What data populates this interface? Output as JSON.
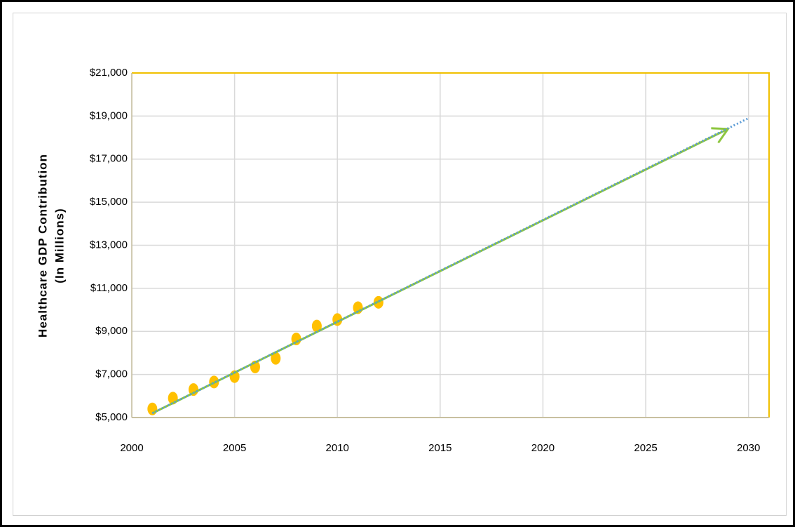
{
  "chart_data": {
    "type": "scatter",
    "ylabel": [
      "Healthcare GDP Contribution",
      "(In Millions)"
    ],
    "x": [
      2001,
      2002,
      2003,
      2004,
      2005,
      2006,
      2007,
      2008,
      2009,
      2010,
      2011,
      2012
    ],
    "values": [
      5400,
      5900,
      6300,
      6650,
      6900,
      7350,
      7750,
      8650,
      9250,
      9550,
      10100,
      10350
    ],
    "color": "#ffc000",
    "trendline": {
      "x": [
        2001,
        2030
      ],
      "values": [
        5200,
        18900
      ],
      "color": "#5b9bd5"
    },
    "arrow": {
      "x": [
        2001,
        2029
      ],
      "values": [
        5200,
        18400
      ],
      "color": "#8dc63f"
    },
    "xlim": [
      2000,
      2031
    ],
    "xticks": [
      2000,
      2005,
      2010,
      2015,
      2020,
      2025,
      2030
    ],
    "ylim": [
      5000,
      21000
    ],
    "yticks": [
      {
        "value": 5000,
        "label": "$5,000"
      },
      {
        "value": 7000,
        "label": "$7,000"
      },
      {
        "value": 9000,
        "label": "$9,000"
      },
      {
        "value": 11000,
        "label": "$11,000"
      },
      {
        "value": 13000,
        "label": "$13,000"
      },
      {
        "value": 15000,
        "label": "$15,000"
      },
      {
        "value": 17000,
        "label": "$17,000"
      },
      {
        "value": 19000,
        "label": "$19,000"
      },
      {
        "value": 21000,
        "label": "$21,000"
      }
    ],
    "grid": true
  }
}
